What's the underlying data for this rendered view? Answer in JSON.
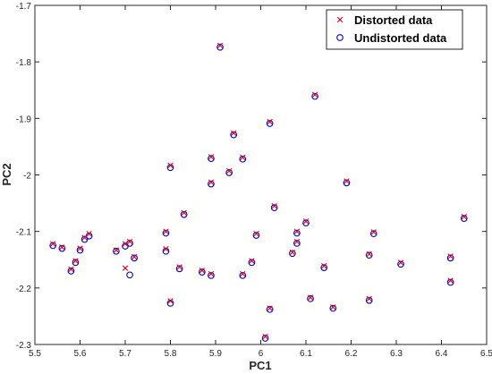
{
  "chart_data": {
    "type": "scatter",
    "xlabel": "PC1",
    "ylabel": "PC2",
    "xlim": [
      5.5,
      6.5
    ],
    "ylim": [
      -2.3,
      -1.7
    ],
    "xticks": [
      5.5,
      5.6,
      5.7,
      5.8,
      5.9,
      6.0,
      6.1,
      6.2,
      6.3,
      6.4,
      6.5
    ],
    "yticks": [
      -1.7,
      -1.8,
      -1.9,
      -2.0,
      -2.1,
      -2.2,
      -2.3
    ],
    "xtick_labels": [
      "5.5",
      "5.6",
      "5.7",
      "5.8",
      "5.9",
      "6",
      "6.1",
      "6.2",
      "6.3",
      "6.4",
      "6.5"
    ],
    "ytick_labels": [
      "-1.7",
      "-1.8",
      "-1.9",
      "-2",
      "-2.1",
      "-2.2",
      "-2.3"
    ],
    "grid": false,
    "legend_position": "top-right",
    "series": [
      {
        "name": "Distorted data",
        "marker": "x",
        "color": "#e0001a",
        "points": [
          [
            5.54,
            -2.122
          ],
          [
            5.56,
            -2.128
          ],
          [
            5.58,
            -2.167
          ],
          [
            5.59,
            -2.152
          ],
          [
            5.6,
            -2.13
          ],
          [
            5.61,
            -2.111
          ],
          [
            5.62,
            -2.104
          ],
          [
            5.68,
            -2.133
          ],
          [
            5.7,
            -2.122
          ],
          [
            5.7,
            -2.165
          ],
          [
            5.71,
            -2.118
          ],
          [
            5.72,
            -2.145
          ],
          [
            5.79,
            -2.1
          ],
          [
            5.79,
            -2.131
          ],
          [
            5.8,
            -1.983
          ],
          [
            5.8,
            -2.223
          ],
          [
            5.82,
            -2.163
          ],
          [
            5.83,
            -2.067
          ],
          [
            5.87,
            -2.169
          ],
          [
            5.89,
            -2.013
          ],
          [
            5.89,
            -1.968
          ],
          [
            5.89,
            -2.175
          ],
          [
            5.91,
            -1.771
          ],
          [
            5.93,
            -1.993
          ],
          [
            5.94,
            -1.926
          ],
          [
            5.96,
            -1.969
          ],
          [
            5.96,
            -2.175
          ],
          [
            5.98,
            -2.152
          ],
          [
            5.99,
            -2.104
          ],
          [
            6.01,
            -2.286
          ],
          [
            6.02,
            -2.236
          ],
          [
            6.02,
            -1.906
          ],
          [
            6.03,
            -2.055
          ],
          [
            6.07,
            -2.137
          ],
          [
            6.08,
            -2.118
          ],
          [
            6.08,
            -2.1
          ],
          [
            6.1,
            -2.082
          ],
          [
            6.11,
            -2.217
          ],
          [
            6.12,
            -1.858
          ],
          [
            6.14,
            -2.161
          ],
          [
            6.16,
            -2.234
          ],
          [
            6.19,
            -2.011
          ],
          [
            6.24,
            -2.14
          ],
          [
            6.24,
            -2.219
          ],
          [
            6.25,
            -2.101
          ],
          [
            6.31,
            -2.155
          ],
          [
            6.42,
            -2.144
          ],
          [
            6.42,
            -2.187
          ],
          [
            6.45,
            -2.074
          ]
        ]
      },
      {
        "name": "Undistorted data",
        "marker": "o",
        "color": "#0000cc",
        "points": [
          [
            5.54,
            -2.125
          ],
          [
            5.56,
            -2.13
          ],
          [
            5.58,
            -2.17
          ],
          [
            5.59,
            -2.155
          ],
          [
            5.6,
            -2.133
          ],
          [
            5.61,
            -2.114
          ],
          [
            5.62,
            -2.108
          ],
          [
            5.68,
            -2.135
          ],
          [
            5.7,
            -2.126
          ],
          [
            5.71,
            -2.177
          ],
          [
            5.71,
            -2.121
          ],
          [
            5.72,
            -2.147
          ],
          [
            5.79,
            -2.103
          ],
          [
            5.79,
            -2.135
          ],
          [
            5.8,
            -1.987
          ],
          [
            5.8,
            -2.227
          ],
          [
            5.82,
            -2.166
          ],
          [
            5.83,
            -2.07
          ],
          [
            5.87,
            -2.172
          ],
          [
            5.89,
            -2.016
          ],
          [
            5.89,
            -1.971
          ],
          [
            5.89,
            -2.178
          ],
          [
            5.91,
            -1.774
          ],
          [
            5.93,
            -1.996
          ],
          [
            5.94,
            -1.929
          ],
          [
            5.96,
            -1.972
          ],
          [
            5.96,
            -2.178
          ],
          [
            5.98,
            -2.155
          ],
          [
            5.99,
            -2.107
          ],
          [
            6.01,
            -2.289
          ],
          [
            6.02,
            -2.238
          ],
          [
            6.02,
            -1.909
          ],
          [
            6.03,
            -2.058
          ],
          [
            6.07,
            -2.139
          ],
          [
            6.08,
            -2.121
          ],
          [
            6.08,
            -2.103
          ],
          [
            6.1,
            -2.085
          ],
          [
            6.11,
            -2.219
          ],
          [
            6.12,
            -1.861
          ],
          [
            6.14,
            -2.164
          ],
          [
            6.16,
            -2.236
          ],
          [
            6.19,
            -2.014
          ],
          [
            6.24,
            -2.142
          ],
          [
            6.24,
            -2.222
          ],
          [
            6.25,
            -2.104
          ],
          [
            6.31,
            -2.158
          ],
          [
            6.42,
            -2.147
          ],
          [
            6.42,
            -2.19
          ],
          [
            6.45,
            -2.077
          ]
        ]
      }
    ]
  }
}
